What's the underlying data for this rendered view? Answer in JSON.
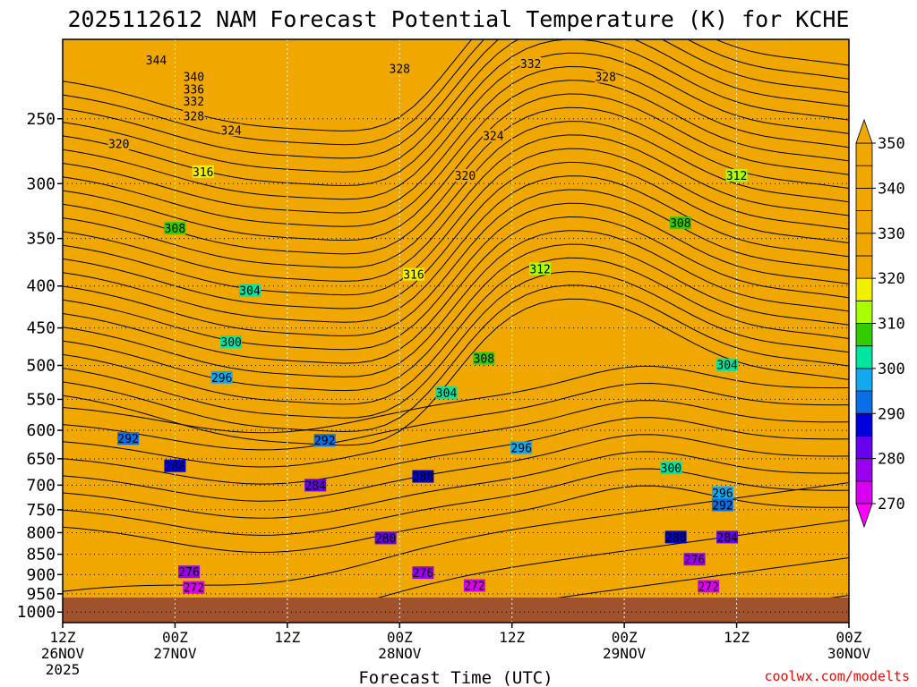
{
  "chart_data": {
    "type": "heatmap",
    "title": "2025112612 NAM Forecast Potential Temperature (K) for KCHE",
    "xlabel": "Forecast Time (UTC)",
    "ylabel": "",
    "credit": "coolwx.com/modelts",
    "x_ticks": [
      {
        "l1": "12Z",
        "l2": "26NOV",
        "l3": "2025"
      },
      {
        "l1": "00Z",
        "l2": "27NOV",
        "l3": ""
      },
      {
        "l1": "12Z",
        "l2": "",
        "l3": ""
      },
      {
        "l1": "00Z",
        "l2": "28NOV",
        "l3": ""
      },
      {
        "l1": "12Z",
        "l2": "",
        "l3": ""
      },
      {
        "l1": "00Z",
        "l2": "29NOV",
        "l3": ""
      },
      {
        "l1": "12Z",
        "l2": "",
        "l3": ""
      },
      {
        "l1": "00Z",
        "l2": "30NOV",
        "l3": ""
      }
    ],
    "x_hours": [
      0,
      12,
      24,
      36,
      48,
      60,
      72,
      84
    ],
    "y_ticks": [
      250,
      300,
      350,
      400,
      450,
      500,
      550,
      600,
      650,
      700,
      750,
      800,
      850,
      900,
      950,
      1000
    ],
    "y_range_hPa": [
      200,
      1030
    ],
    "y_scale": "log",
    "grid": true,
    "ground_level_hPa": 960,
    "colorbar": {
      "ticks": [
        270,
        280,
        290,
        300,
        310,
        320,
        330,
        340,
        350
      ],
      "colors": [
        "#ff00ff",
        "#d800ee",
        "#9a00ee",
        "#6600ee",
        "#0000dd",
        "#0a6ee6",
        "#14a8ee",
        "#00e6a0",
        "#32cc00",
        "#a8ff00",
        "#f0f000",
        "#f0a800"
      ]
    },
    "contour_labels": [
      {
        "v": "344",
        "h": 10,
        "p": 212
      },
      {
        "v": "340",
        "h": 14,
        "p": 222
      },
      {
        "v": "336",
        "h": 14,
        "p": 230
      },
      {
        "v": "332",
        "h": 14,
        "p": 238
      },
      {
        "v": "328",
        "h": 14,
        "p": 248
      },
      {
        "v": "324",
        "h": 18,
        "p": 258
      },
      {
        "v": "320",
        "h": 6,
        "p": 268
      },
      {
        "v": "316",
        "h": 15,
        "p": 290
      },
      {
        "v": "308",
        "h": 12,
        "p": 340
      },
      {
        "v": "304",
        "h": 20,
        "p": 405
      },
      {
        "v": "300",
        "h": 18,
        "p": 468
      },
      {
        "v": "296",
        "h": 17,
        "p": 517
      },
      {
        "v": "292",
        "h": 7,
        "p": 614
      },
      {
        "v": "288",
        "h": 12,
        "p": 663
      },
      {
        "v": "284",
        "h": 27,
        "p": 700
      },
      {
        "v": "280",
        "h": 34.5,
        "p": 812
      },
      {
        "v": "276",
        "h": 13.5,
        "p": 893
      },
      {
        "v": "272",
        "h": 14,
        "p": 933
      },
      {
        "v": "328",
        "h": 36,
        "p": 217
      },
      {
        "v": "324",
        "h": 46,
        "p": 262
      },
      {
        "v": "320",
        "h": 43,
        "p": 293
      },
      {
        "v": "316",
        "h": 37.5,
        "p": 387
      },
      {
        "v": "312",
        "h": 51,
        "p": 381
      },
      {
        "v": "308",
        "h": 45,
        "p": 490
      },
      {
        "v": "304",
        "h": 41,
        "p": 540
      },
      {
        "v": "296",
        "h": 49,
        "p": 630
      },
      {
        "v": "292",
        "h": 28,
        "p": 617
      },
      {
        "v": "288",
        "h": 38.5,
        "p": 683
      },
      {
        "v": "276",
        "h": 38.5,
        "p": 895
      },
      {
        "v": "272",
        "h": 44,
        "p": 928
      },
      {
        "v": "332",
        "h": 50,
        "p": 214
      },
      {
        "v": "328",
        "h": 58,
        "p": 222
      },
      {
        "v": "312",
        "h": 72,
        "p": 293
      },
      {
        "v": "308",
        "h": 66,
        "p": 335
      },
      {
        "v": "304",
        "h": 71,
        "p": 499
      },
      {
        "v": "300",
        "h": 65,
        "p": 667
      },
      {
        "v": "296",
        "h": 70.5,
        "p": 715
      },
      {
        "v": "292",
        "h": 70.5,
        "p": 740
      },
      {
        "v": "288",
        "h": 65.5,
        "p": 810
      },
      {
        "v": "284",
        "h": 71,
        "p": 810
      },
      {
        "v": "276",
        "h": 67.5,
        "p": 862
      },
      {
        "v": "272",
        "h": 69,
        "p": 930
      }
    ]
  }
}
